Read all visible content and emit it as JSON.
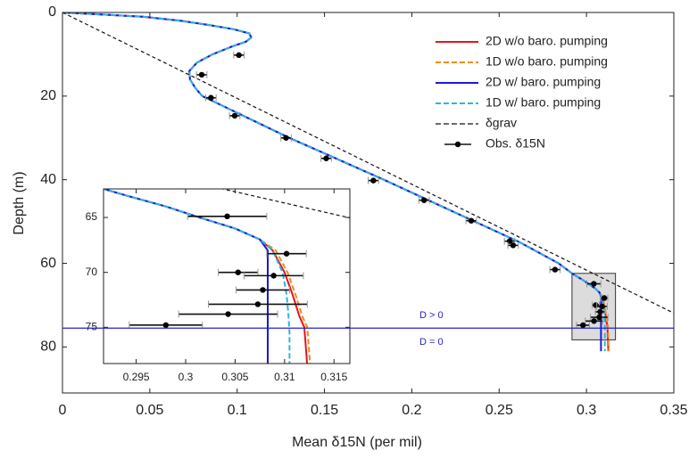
{
  "chart_data": [
    {
      "type": "line",
      "xlabel": "Mean δ15N (per mil)",
      "ylabel": "Depth (m)",
      "xlim": [
        0,
        0.35
      ],
      "ylim": [
        0,
        91
      ],
      "y_reversed": true,
      "xticks": [
        0,
        0.05,
        0.1,
        0.15,
        0.2,
        0.25,
        0.3,
        0.35
      ],
      "yticks": [
        0,
        20,
        40,
        60,
        80
      ],
      "series": [
        {
          "name": "2D w/o baro. pumping",
          "color": "#e8141b",
          "dash": false,
          "x": [
            0,
            0.046,
            0.068,
            0.084,
            0.098,
            0.107,
            0.108,
            0.105,
            0.098,
            0.086,
            0.077,
            0.0726,
            0.073,
            0.076,
            0.08,
            0.105,
            0.13,
            0.157,
            0.184,
            0.21,
            0.236,
            0.262,
            0.284,
            0.2917,
            0.294,
            0.298,
            0.3014,
            0.305,
            0.3075,
            0.3088,
            0.31,
            0.3108,
            0.3115,
            0.312,
            0.3125
          ],
          "y": [
            0,
            1,
            2,
            3,
            4,
            5,
            6,
            7,
            8,
            10,
            12,
            14,
            16,
            18,
            20,
            25,
            30,
            35,
            40,
            45,
            50,
            55,
            60,
            62.4,
            63,
            64,
            65,
            66,
            67,
            68,
            70,
            72,
            74,
            75,
            81
          ]
        },
        {
          "name": "1D w/o baro. pumping",
          "color": "#f08c1c",
          "dash": true,
          "x": [
            0,
            0.046,
            0.068,
            0.084,
            0.098,
            0.107,
            0.108,
            0.105,
            0.098,
            0.086,
            0.077,
            0.0726,
            0.073,
            0.076,
            0.08,
            0.105,
            0.13,
            0.157,
            0.184,
            0.21,
            0.236,
            0.262,
            0.284,
            0.2917,
            0.294,
            0.298,
            0.3014,
            0.305,
            0.3075,
            0.3091,
            0.3103,
            0.3111,
            0.3118,
            0.3123,
            0.3128
          ],
          "y": [
            0,
            1,
            2,
            3,
            4,
            5,
            6,
            7,
            8,
            10,
            12,
            14,
            16,
            18,
            20,
            25,
            30,
            35,
            40,
            45,
            50,
            55,
            60,
            62.4,
            63,
            64,
            65,
            66,
            67,
            68,
            70,
            72,
            74,
            75,
            81
          ]
        },
        {
          "name": "2D w/ baro. pumping",
          "color": "#1a1ad6",
          "dash": false,
          "x": [
            0,
            0.046,
            0.068,
            0.084,
            0.098,
            0.107,
            0.108,
            0.105,
            0.098,
            0.086,
            0.077,
            0.0726,
            0.073,
            0.076,
            0.08,
            0.105,
            0.13,
            0.157,
            0.184,
            0.21,
            0.236,
            0.262,
            0.284,
            0.2917,
            0.294,
            0.298,
            0.3014,
            0.305,
            0.3075,
            0.3083,
            0.3083,
            0.3083,
            0.3083
          ],
          "y": [
            0,
            1,
            2,
            3,
            4,
            5,
            6,
            7,
            8,
            10,
            12,
            14,
            16,
            18,
            20,
            25,
            30,
            35,
            40,
            45,
            50,
            55,
            60,
            62.4,
            63,
            64,
            65,
            66,
            67,
            68,
            70,
            75,
            81
          ]
        },
        {
          "name": "1D w/ baro. pumping",
          "color": "#2ab4e6",
          "dash": true,
          "x": [
            0,
            0.046,
            0.068,
            0.084,
            0.098,
            0.107,
            0.108,
            0.105,
            0.098,
            0.086,
            0.077,
            0.0726,
            0.073,
            0.076,
            0.08,
            0.105,
            0.13,
            0.157,
            0.184,
            0.21,
            0.236,
            0.262,
            0.284,
            0.2917,
            0.294,
            0.298,
            0.3014,
            0.305,
            0.3075,
            0.3088,
            0.3098,
            0.3102,
            0.3104,
            0.3105,
            0.3105
          ],
          "y": [
            0,
            1,
            2,
            3,
            4,
            5,
            6,
            7,
            8,
            10,
            12,
            14,
            16,
            18,
            20,
            25,
            30,
            35,
            40,
            45,
            50,
            55,
            60,
            62.4,
            63,
            64,
            65,
            66,
            67,
            68,
            70,
            72,
            74,
            75.5,
            81
          ]
        },
        {
          "name": "δgrav",
          "color": "#111111",
          "dash": true,
          "x": [
            0,
            0.35
          ],
          "y": [
            0,
            71.9
          ]
        }
      ],
      "observations": {
        "name": "Obs. δ15N",
        "color": "#000000",
        "x": [
          0.101,
          0.0797,
          0.085,
          0.0986,
          0.128,
          0.151,
          0.178,
          0.207,
          0.234,
          0.256,
          0.258,
          0.282,
          0.3042,
          0.3102,
          0.3053,
          0.3089,
          0.3078,
          0.3073,
          0.3043,
          0.298
        ],
        "y": [
          10.2,
          14.9,
          20.4,
          24.7,
          30,
          34.9,
          40.2,
          44.9,
          49.8,
          54.7,
          55.7,
          61.5,
          64.9,
          68.3,
          70,
          70.3,
          71.6,
          72.9,
          73.8,
          74.8
        ],
        "xerr": [
          0.003,
          0.003,
          0.003,
          0.003,
          0.003,
          0.003,
          0.003,
          0.003,
          0.003,
          0.003,
          0.003,
          0.003,
          0.004,
          0.002,
          0.002,
          0.003,
          0.0027,
          0.005,
          0.005,
          0.0037
        ]
      },
      "boundary_depth": 75.5,
      "annotations": [
        "D > 0",
        "D = 0"
      ]
    },
    {
      "type": "line",
      "xlim": [
        0.2917,
        0.3166
      ],
      "ylim": [
        62.4,
        78.3
      ],
      "y_reversed": true,
      "xticks": [
        0.295,
        0.3,
        0.305,
        0.31,
        0.315
      ],
      "yticks": [
        65,
        70,
        75
      ]
    }
  ]
}
